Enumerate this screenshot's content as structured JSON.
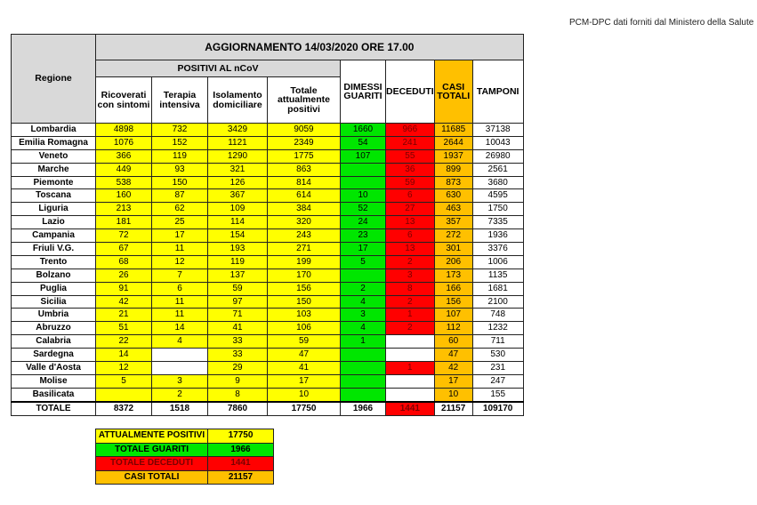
{
  "source_note": "PCM-DPC dati forniti dal Ministero della Salute",
  "table": {
    "title": "AGGIORNAMENTO 14/03/2020 ORE 17.00",
    "region_header": "Regione",
    "group_header": "POSITIVI AL nCoV",
    "columns": [
      "Ricoverati con sintomi",
      "Terapia intensiva",
      "Isolamento domiciliare",
      "Totale attualmente positivi",
      "DIMESSI GUARITI",
      "DECEDUTI",
      "CASI TOTALI",
      "TAMPONI"
    ],
    "rows": [
      {
        "region": "Lombardia",
        "values": [
          4898,
          732,
          3429,
          9059,
          1660,
          966,
          11685,
          37138
        ]
      },
      {
        "region": "Emilia Romagna",
        "values": [
          1076,
          152,
          1121,
          2349,
          54,
          241,
          2644,
          10043
        ]
      },
      {
        "region": "Veneto",
        "values": [
          366,
          119,
          1290,
          1775,
          107,
          55,
          1937,
          26980
        ]
      },
      {
        "region": "Marche",
        "values": [
          449,
          93,
          321,
          863,
          null,
          36,
          899,
          2561
        ]
      },
      {
        "region": "Piemonte",
        "values": [
          538,
          150,
          126,
          814,
          null,
          59,
          873,
          3680
        ]
      },
      {
        "region": "Toscana",
        "values": [
          160,
          87,
          367,
          614,
          10,
          6,
          630,
          4595
        ]
      },
      {
        "region": "Liguria",
        "values": [
          213,
          62,
          109,
          384,
          52,
          27,
          463,
          1750
        ]
      },
      {
        "region": "Lazio",
        "values": [
          181,
          25,
          114,
          320,
          24,
          13,
          357,
          7335
        ]
      },
      {
        "region": "Campania",
        "values": [
          72,
          17,
          154,
          243,
          23,
          6,
          272,
          1936
        ]
      },
      {
        "region": "Friuli V.G.",
        "values": [
          67,
          11,
          193,
          271,
          17,
          13,
          301,
          3376
        ]
      },
      {
        "region": "Trento",
        "values": [
          68,
          12,
          119,
          199,
          5,
          2,
          206,
          1006
        ]
      },
      {
        "region": "Bolzano",
        "values": [
          26,
          7,
          137,
          170,
          null,
          3,
          173,
          1135
        ]
      },
      {
        "region": "Puglia",
        "values": [
          91,
          6,
          59,
          156,
          2,
          8,
          166,
          1681
        ]
      },
      {
        "region": "Sicilia",
        "values": [
          42,
          11,
          97,
          150,
          4,
          2,
          156,
          2100
        ]
      },
      {
        "region": "Umbria",
        "values": [
          21,
          11,
          71,
          103,
          3,
          1,
          107,
          748
        ]
      },
      {
        "region": "Abruzzo",
        "values": [
          51,
          14,
          41,
          106,
          4,
          2,
          112,
          1232
        ]
      },
      {
        "region": "Calabria",
        "values": [
          22,
          4,
          33,
          59,
          1,
          null,
          60,
          711
        ]
      },
      {
        "region": "Sardegna",
        "values": [
          14,
          null,
          33,
          47,
          null,
          null,
          47,
          530
        ]
      },
      {
        "region": "Valle d'Aosta",
        "values": [
          12,
          null,
          29,
          41,
          null,
          1,
          42,
          231
        ]
      },
      {
        "region": "Molise",
        "values": [
          5,
          3,
          9,
          17,
          null,
          null,
          17,
          247
        ]
      },
      {
        "region": "Basilicata",
        "values": [
          null,
          2,
          8,
          10,
          null,
          null,
          10,
          155
        ]
      }
    ],
    "total": {
      "label": "TOTALE",
      "values": [
        8372,
        1518,
        7860,
        17750,
        1966,
        1441,
        21157,
        109170
      ]
    }
  },
  "summary": {
    "rows": [
      {
        "label": "ATTUALMENTE POSITIVI",
        "value": 17750
      },
      {
        "label": "TOTALE GUARITI",
        "value": 1966
      },
      {
        "label": "TOTALE DECEDUTI",
        "value": 1441
      },
      {
        "label": "CASI TOTALI",
        "value": 21157
      }
    ]
  }
}
